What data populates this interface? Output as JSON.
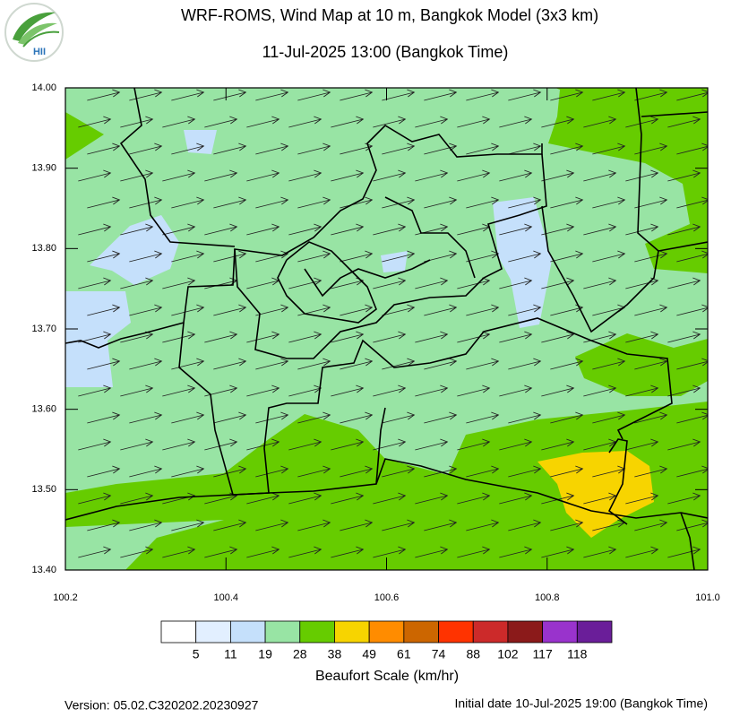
{
  "header": {
    "title": "WRF-ROMS, Wind Map at 10 m, Bangkok Model (3x3 km)",
    "subtitle": "11-Jul-2025 13:00 (Bangkok Time)",
    "logo_text": "HII"
  },
  "map": {
    "xlim": [
      100.2,
      101.0
    ],
    "ylim": [
      13.4,
      14.0
    ],
    "xticks": [
      100.2,
      100.4,
      100.6,
      100.8,
      {
        "value": 101.0,
        "label": "101.0"
      }
    ],
    "yticks": [
      {
        "value": 13.4,
        "label": "13.40"
      },
      {
        "value": 13.5,
        "label": "13.50"
      },
      {
        "value": 13.6,
        "label": "13.60"
      },
      {
        "value": 13.7,
        "label": "13.70"
      },
      {
        "value": 13.8,
        "label": "13.80"
      },
      {
        "value": 13.9,
        "label": "13.90"
      },
      {
        "value": 14.0,
        "label": "14.00"
      }
    ]
  },
  "colorbar": {
    "title": "Beaufort Scale (km/hr)",
    "colors": [
      "#ffffff",
      "#e2efff",
      "#c5e0fb",
      "#98e4a4",
      "#66cc00",
      "#f7d400",
      "#ff8c00",
      "#cc6600",
      "#ff3300",
      "#cc2a2a",
      "#8b1a1a",
      "#9933cc",
      "#6a1e99"
    ],
    "labels": [
      5,
      11,
      19,
      28,
      38,
      49,
      61,
      74,
      88,
      102,
      117,
      118
    ]
  },
  "footer": {
    "version": "Version: 05.02.C320202.20230927",
    "initial_date": "Initial date 10-Jul-2025 19:00 (Bangkok Time)"
  }
}
